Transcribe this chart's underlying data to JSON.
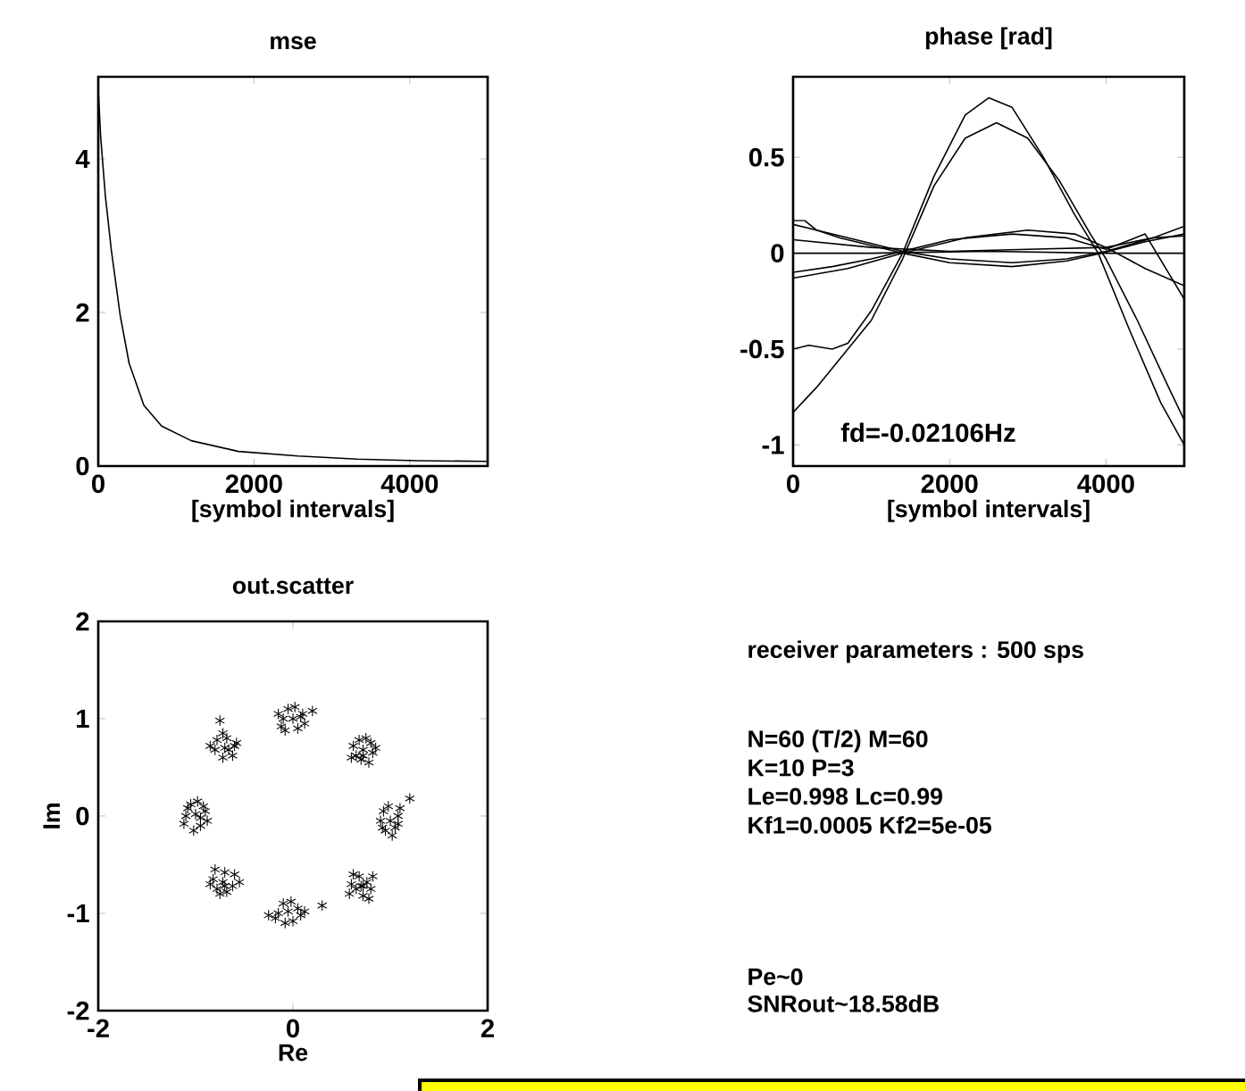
{
  "chart_data": [
    {
      "type": "line",
      "title": "mse",
      "xlabel": "[symbol intervals]",
      "xlim": [
        0,
        5000
      ],
      "ylim": [
        0,
        5.07
      ],
      "xticks": [
        0,
        2000,
        4000
      ],
      "yticks": [
        0,
        2,
        4
      ],
      "line_style": "solid",
      "series": [
        {
          "color": "#000000",
          "x": [
            0,
            30,
            91,
            167,
            282,
            396,
            586,
            814,
            1195,
            1800,
            2565,
            3326,
            4087,
            5000
          ],
          "values": [
            4.9,
            4.3,
            3.52,
            2.82,
            1.96,
            1.34,
            0.79,
            0.52,
            0.33,
            0.19,
            0.13,
            0.09,
            0.07,
            0.06
          ]
        }
      ]
    },
    {
      "type": "line",
      "title": "phase [rad]",
      "xlabel": "[symbol intervals]",
      "xlim": [
        0,
        5000
      ],
      "ylim": [
        -1.11,
        0.92
      ],
      "xticks": [
        0,
        2000,
        4000
      ],
      "yticks": [
        -1,
        -0.5,
        0,
        0.5
      ],
      "line_style": "solid",
      "annotations": [
        "fd=-0.02106Hz"
      ],
      "series": [
        {
          "color": "#000000",
          "x": [
            0,
            200,
            500,
            700,
            1000,
            1400,
            1800,
            2200,
            2500,
            2800,
            3200,
            3600,
            3900,
            4300,
            4700,
            5000
          ],
          "values": [
            -0.5,
            -0.48,
            -0.5,
            -0.47,
            -0.3,
            0,
            0.4,
            0.72,
            0.81,
            0.76,
            0.5,
            0.2,
            0,
            -0.4,
            -0.78,
            -1.0
          ]
        },
        {
          "color": "#000000",
          "x": [
            0,
            300,
            600,
            1000,
            1400,
            1800,
            2200,
            2600,
            3000,
            3400,
            3800,
            4000,
            4400,
            4800,
            5000
          ],
          "values": [
            -0.83,
            -0.7,
            -0.55,
            -0.35,
            -0.03,
            0.35,
            0.6,
            0.68,
            0.6,
            0.38,
            0.1,
            -0.03,
            -0.35,
            -0.7,
            -0.87
          ]
        },
        {
          "color": "#000000",
          "x": [
            0,
            150,
            300,
            600,
            1000,
            1400,
            2000,
            2800,
            3500,
            3950,
            4500,
            5000
          ],
          "values": [
            0.17,
            0.17,
            0.12,
            0.08,
            0.04,
            0,
            -0.05,
            -0.07,
            -0.04,
            0,
            0.06,
            0.1
          ]
        },
        {
          "color": "#000000",
          "x": [
            0,
            500,
            1000,
            1400,
            2000,
            2800,
            3500,
            4000,
            4600,
            5000
          ],
          "values": [
            0.15,
            0.1,
            0.05,
            0.01,
            -0.03,
            -0.05,
            -0.03,
            0.01,
            0.08,
            0.14
          ]
        },
        {
          "color": "#000000",
          "x": [
            0,
            500,
            1000,
            1400,
            2000,
            2800,
            3500,
            4000,
            4500,
            5000
          ],
          "values": [
            -0.1,
            -0.07,
            -0.03,
            0.01,
            0.07,
            0.1,
            0.08,
            0.02,
            0.1,
            -0.24
          ]
        },
        {
          "color": "#000000",
          "x": [
            0,
            700,
            1400,
            2200,
            3000,
            3600,
            4000,
            4500,
            5000
          ],
          "values": [
            -0.13,
            -0.08,
            0,
            0.08,
            0.12,
            0.1,
            0.03,
            -0.08,
            -0.17
          ]
        },
        {
          "color": "#000000",
          "x": [
            0,
            1000,
            2000,
            3000,
            4000,
            4600,
            5000
          ],
          "values": [
            0.07,
            0.03,
            0.01,
            0.02,
            0.03,
            0.08,
            0.09
          ]
        },
        {
          "color": "#000000",
          "x": [
            0,
            1000,
            2500,
            4000,
            5000
          ],
          "values": [
            0,
            0,
            0.01,
            0,
            0
          ]
        }
      ]
    },
    {
      "type": "scatter",
      "title": "out.scatter",
      "xlabel": "Re",
      "ylabel": "Im",
      "xlim": [
        -2,
        2
      ],
      "ylim": [
        -2,
        2
      ],
      "xticks": [
        -2,
        0,
        2
      ],
      "yticks": [
        -2,
        -1,
        0,
        1,
        2
      ],
      "marker": "cross",
      "series": [
        {
          "color": "#000000",
          "x": [
            1.0,
            0.93,
            1.08,
            0.95,
            1.05,
            0.9,
            1.1,
            0.98,
            1.2,
            1.02,
            0.92,
            1.08,
            0.72,
            0.62,
            0.8,
            0.7,
            0.65,
            0.82,
            0.75,
            0.6,
            0.78,
            0.68,
            0.85,
            0.72,
            0.0,
            0.1,
            -0.1,
            0.05,
            -0.05,
            0.12,
            -0.12,
            0.02,
            0.2,
            -0.08,
            0.08,
            -0.15,
            -0.7,
            -0.6,
            -0.8,
            -0.72,
            -0.68,
            -0.75,
            -0.62,
            -0.78,
            -0.66,
            -0.85,
            -0.72,
            -0.58,
            -1.0,
            -0.9,
            -1.1,
            -0.95,
            -1.05,
            -0.88,
            -1.12,
            -0.98,
            -1.02,
            -0.92,
            -1.08,
            -0.95,
            -0.72,
            -0.62,
            -0.82,
            -0.7,
            -0.75,
            -0.6,
            -0.85,
            -0.68,
            -0.55,
            -0.8,
            -0.7,
            -0.78,
            -0.05,
            0.05,
            -0.15,
            0.0,
            -0.1,
            0.08,
            -0.18,
            0.3,
            -0.02,
            -0.08,
            0.12,
            -0.25,
            0.7,
            0.6,
            0.8,
            0.68,
            0.72,
            0.58,
            0.82,
            0.65,
            0.76,
            0.62,
            0.78,
            0.72
          ],
          "values": [
            -0.05,
            0.05,
            0.0,
            -0.15,
            -0.12,
            -0.05,
            0.08,
            0.1,
            0.18,
            -0.2,
            -0.12,
            -0.08,
            0.68,
            0.72,
            0.75,
            0.58,
            0.62,
            0.65,
            0.8,
            0.6,
            0.55,
            0.78,
            0.7,
            0.62,
            1.0,
            1.05,
            1.0,
            0.9,
            1.1,
            0.95,
            0.92,
            1.12,
            1.08,
            0.88,
            1.02,
            1.05,
            0.7,
            0.72,
            0.68,
            0.6,
            0.8,
            0.98,
            0.62,
            0.78,
            0.68,
            0.72,
            0.85,
            0.75,
            0.02,
            0.05,
            0.0,
            -0.1,
            0.12,
            -0.05,
            -0.08,
            0.15,
            -0.15,
            0.1,
            0.08,
            -0.02,
            -0.68,
            -0.72,
            -0.65,
            -0.58,
            -0.8,
            -0.6,
            -0.7,
            -0.78,
            -0.68,
            -0.55,
            -0.72,
            -0.75,
            -0.98,
            -0.95,
            -1.0,
            -1.08,
            -0.9,
            -1.02,
            -1.05,
            -0.92,
            -0.88,
            -1.1,
            -0.98,
            -1.02,
            -0.72,
            -0.7,
            -0.75,
            -0.62,
            -0.82,
            -0.8,
            -0.62,
            -0.75,
            -0.68,
            -0.6,
            -0.85,
            -0.72
          ]
        }
      ]
    },
    {
      "type": "other",
      "annotations": [
        "receiver parameters : 500 sps",
        "N=60 (T/2)  M=60",
        "K=10 P=3",
        "Le=0.998 Lc=0.99",
        "Kf1=0.0005 Kf2=5e-05",
        "Pe~0",
        "SNRout~18.58dB"
      ]
    }
  ]
}
